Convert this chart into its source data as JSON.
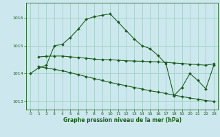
{
  "title": "Graphe pression niveau de la mer (hPa)",
  "bg_color": "#cce8ee",
  "grid_color": "#99ccbb",
  "line_color": "#1a5c1a",
  "xlim": [
    -0.5,
    23.5
  ],
  "ylim": [
    1012.7,
    1016.55
  ],
  "yticks": [
    1013,
    1014,
    1015,
    1016
  ],
  "xticks": [
    0,
    1,
    2,
    3,
    4,
    5,
    6,
    7,
    8,
    9,
    10,
    11,
    12,
    13,
    14,
    15,
    16,
    17,
    18,
    19,
    20,
    21,
    22,
    23
  ],
  "series1_x": [
    0,
    1,
    2,
    3,
    4,
    5,
    6,
    7,
    8,
    9,
    10,
    11,
    12,
    13,
    14,
    15,
    16,
    17,
    18,
    19,
    20,
    21,
    22,
    23
  ],
  "series1_y": [
    1014.0,
    1014.2,
    1014.3,
    1015.0,
    1015.05,
    1015.3,
    1015.6,
    1015.95,
    1016.05,
    1016.1,
    1016.15,
    1015.85,
    1015.55,
    1015.25,
    1015.0,
    1014.9,
    1014.65,
    1014.35,
    1013.2,
    1013.5,
    1014.0,
    1013.75,
    1013.45,
    1014.3
  ],
  "series2_x": [
    1,
    2,
    3,
    4,
    5,
    6,
    7,
    8,
    9,
    10,
    11,
    12,
    13,
    14,
    15,
    16,
    17,
    18,
    19,
    20,
    21,
    22,
    23
  ],
  "series2_y": [
    1014.6,
    1014.62,
    1014.63,
    1014.63,
    1014.6,
    1014.58,
    1014.55,
    1014.52,
    1014.5,
    1014.5,
    1014.48,
    1014.46,
    1014.45,
    1014.44,
    1014.43,
    1014.42,
    1014.4,
    1014.38,
    1014.36,
    1014.34,
    1014.32,
    1014.3,
    1014.35
  ],
  "series3_x": [
    1,
    2,
    3,
    4,
    5,
    6,
    7,
    8,
    9,
    10,
    11,
    12,
    13,
    14,
    15,
    16,
    17,
    18,
    19,
    20,
    21,
    22,
    23
  ],
  "series3_y": [
    1014.25,
    1014.2,
    1014.15,
    1014.1,
    1014.03,
    1013.96,
    1013.89,
    1013.82,
    1013.75,
    1013.68,
    1013.62,
    1013.56,
    1013.5,
    1013.44,
    1013.38,
    1013.33,
    1013.28,
    1013.22,
    1013.17,
    1013.12,
    1013.07,
    1013.03,
    1013.0
  ]
}
